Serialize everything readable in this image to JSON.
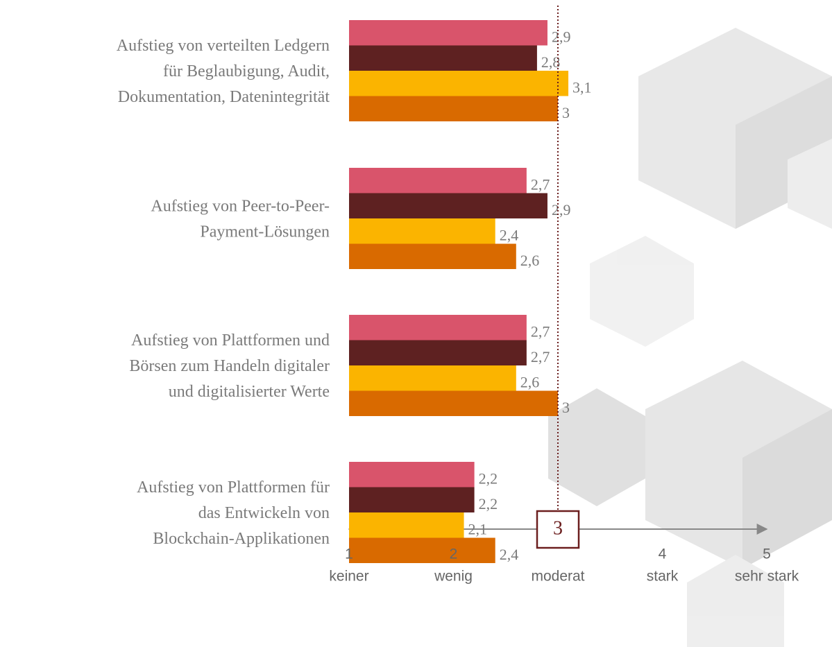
{
  "chart_data": {
    "type": "hbar",
    "categories": [
      "Aufstieg von verteilten Ledgern\nfür Beglaubigung, Audit,\nDokumentation, Datenintegrität",
      "Aufstieg von Peer-to-Peer-\nPayment-Lösungen",
      "Aufstieg von Plattformen und\nBörsen zum Handeln digitaler\nund digitalisierter Werte",
      "Aufstieg von Plattformen für\ndas Entwickeln von\nBlockchain-Applikationen"
    ],
    "series": [
      {
        "color": "#d9546b",
        "values": [
          2.9,
          2.7,
          2.7,
          2.2
        ],
        "value_labels": [
          "2,9",
          "2,7",
          "2,7",
          "2,2"
        ]
      },
      {
        "color": "#5e2121",
        "values": [
          2.8,
          2.9,
          2.7,
          2.2
        ],
        "value_labels": [
          "2,8",
          "2,9",
          "2,7",
          "2,2"
        ]
      },
      {
        "color": "#fbb400",
        "values": [
          3.1,
          2.4,
          2.6,
          2.1
        ],
        "value_labels": [
          "3,1",
          "2,4",
          "2,6",
          "2,1"
        ]
      },
      {
        "color": "#d96a00",
        "values": [
          3,
          2.6,
          3,
          2.4
        ],
        "value_labels": [
          "3",
          "2,6",
          "3",
          "2,4"
        ]
      }
    ],
    "xlim": [
      1,
      5
    ],
    "xticks": [
      1,
      2,
      3,
      4,
      5
    ],
    "xtick_words": [
      "keiner",
      "wenig",
      "moderat",
      "stark",
      "sehr stark"
    ],
    "reference_line": 3,
    "reference_color": "#6b1e1e"
  }
}
